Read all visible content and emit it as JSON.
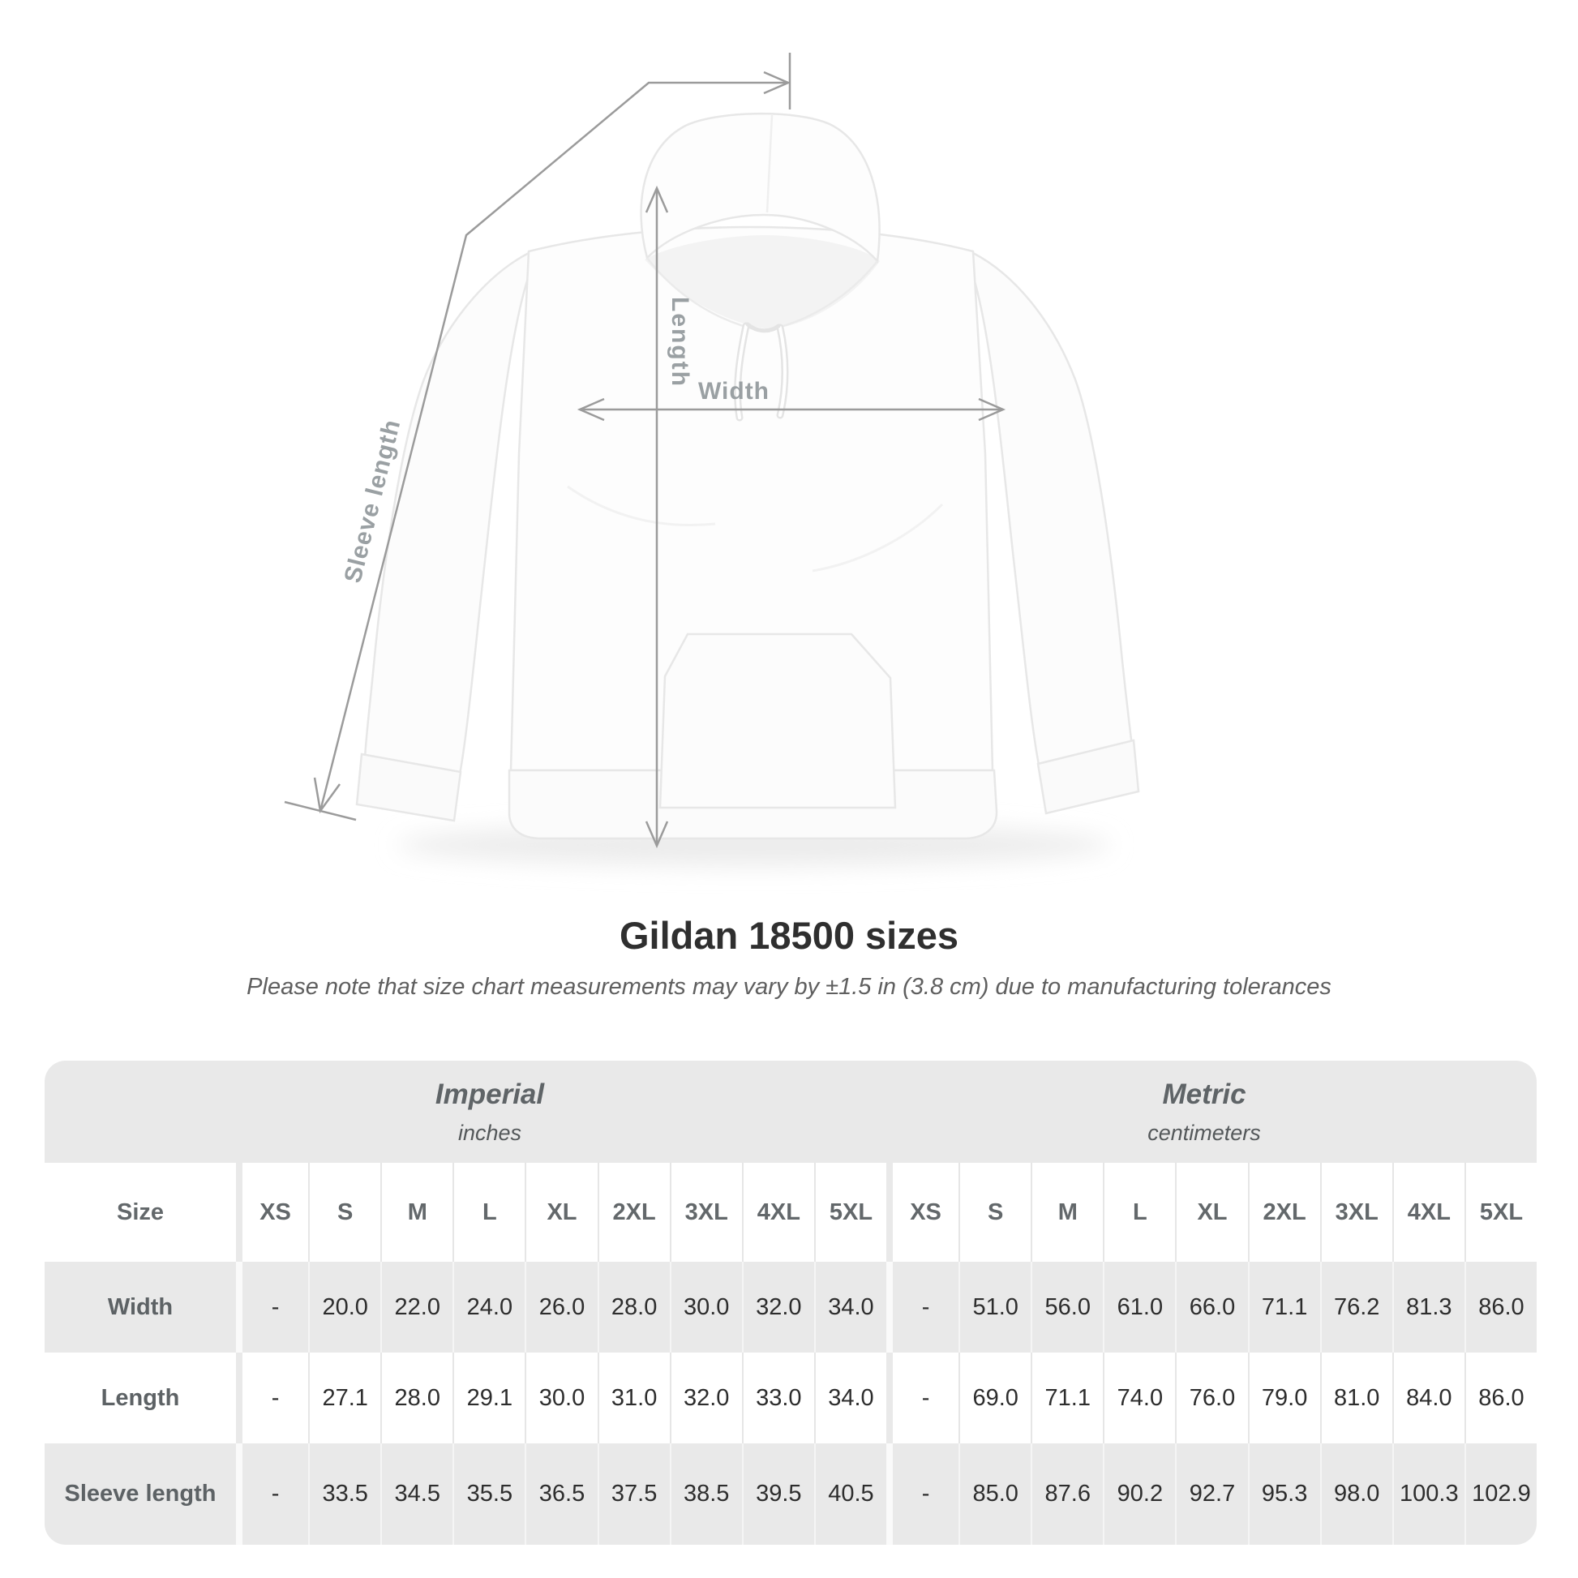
{
  "diagram": {
    "labels": {
      "length": "Length",
      "width": "Width",
      "sleeve": "Sleeve length"
    }
  },
  "title": "Gildan 18500 sizes",
  "note": "Please note that size chart measurements may vary by ±1.5 in (3.8 cm) due to manufacturing tolerances",
  "table": {
    "groups": [
      {
        "title": "Imperial",
        "subtitle": "inches"
      },
      {
        "title": "Metric",
        "subtitle": "centimeters"
      }
    ],
    "size_header": "Size",
    "sizes": [
      "XS",
      "S",
      "M",
      "L",
      "XL",
      "2XL",
      "3XL",
      "4XL",
      "5XL"
    ],
    "rows": [
      {
        "label": "Width",
        "imperial": [
          "-",
          "20.0",
          "22.0",
          "24.0",
          "26.0",
          "28.0",
          "30.0",
          "32.0",
          "34.0"
        ],
        "metric": [
          "-",
          "51.0",
          "56.0",
          "61.0",
          "66.0",
          "71.1",
          "76.2",
          "81.3",
          "86.0"
        ]
      },
      {
        "label": "Length",
        "imperial": [
          "-",
          "27.1",
          "28.0",
          "29.1",
          "30.0",
          "31.0",
          "32.0",
          "33.0",
          "34.0"
        ],
        "metric": [
          "-",
          "69.0",
          "71.1",
          "74.0",
          "76.0",
          "79.0",
          "81.0",
          "84.0",
          "86.0"
        ]
      },
      {
        "label": "Sleeve length",
        "imperial": [
          "-",
          "33.5",
          "34.5",
          "35.5",
          "36.5",
          "37.5",
          "38.5",
          "39.5",
          "40.5"
        ],
        "metric": [
          "-",
          "85.0",
          "87.6",
          "90.2",
          "92.7",
          "95.3",
          "98.0",
          "100.3",
          "102.9"
        ]
      }
    ]
  },
  "colors": {
    "band_gray": "#e9e9e9",
    "annotation_gray": "#9b9b9b",
    "title_text": "#2f2f2f",
    "header_text": "#63686b",
    "value_text": "#2d2d2d"
  },
  "chart_data": {
    "type": "table",
    "title": "Gildan 18500 sizes",
    "columns": [
      "Size",
      "XS",
      "S",
      "M",
      "L",
      "XL",
      "2XL",
      "3XL",
      "4XL",
      "5XL"
    ],
    "imperial_inches": {
      "Width": [
        null,
        20.0,
        22.0,
        24.0,
        26.0,
        28.0,
        30.0,
        32.0,
        34.0
      ],
      "Length": [
        null,
        27.1,
        28.0,
        29.1,
        30.0,
        31.0,
        32.0,
        33.0,
        34.0
      ],
      "Sleeve length": [
        null,
        33.5,
        34.5,
        35.5,
        36.5,
        37.5,
        38.5,
        39.5,
        40.5
      ]
    },
    "metric_centimeters": {
      "Width": [
        null,
        51.0,
        56.0,
        61.0,
        66.0,
        71.1,
        76.2,
        81.3,
        86.0
      ],
      "Length": [
        null,
        69.0,
        71.1,
        74.0,
        76.0,
        79.0,
        81.0,
        84.0,
        86.0
      ],
      "Sleeve length": [
        null,
        85.0,
        87.6,
        90.2,
        92.7,
        95.3,
        98.0,
        100.3,
        102.9
      ]
    }
  }
}
